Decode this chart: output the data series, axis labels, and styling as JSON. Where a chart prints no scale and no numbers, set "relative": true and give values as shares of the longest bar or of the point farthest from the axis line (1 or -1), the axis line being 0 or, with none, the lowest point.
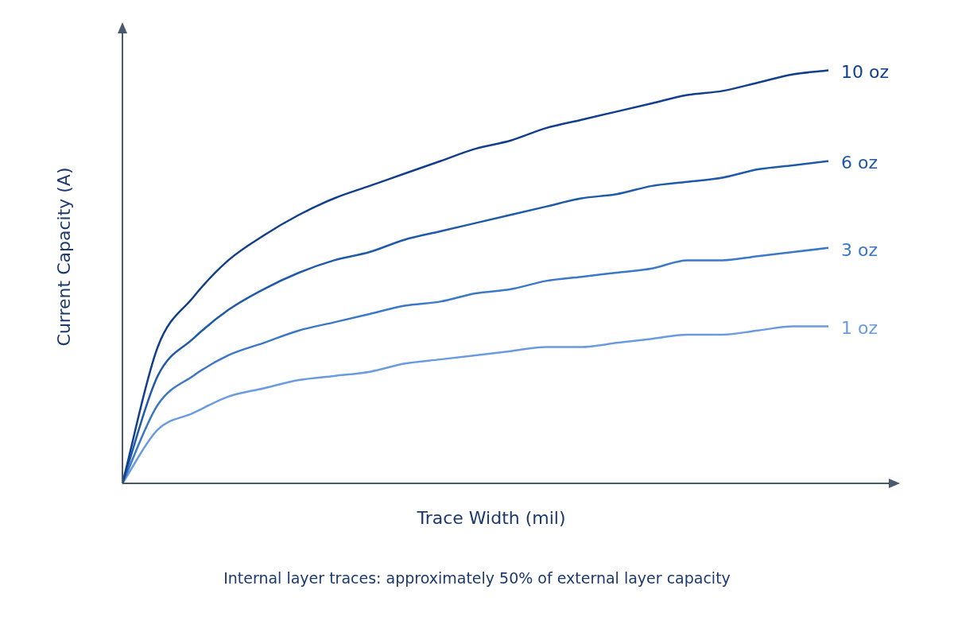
{
  "chart_data": {
    "type": "line",
    "relative": true,
    "xlabel": "Trace Width (mil)",
    "ylabel": "Current Capacity (A)",
    "annotations": [
      "Internal layer traces: approximately 50% of external layer capacity"
    ],
    "legend": false,
    "marker": "none",
    "line_style": "solid",
    "categories": [
      null,
      null,
      null,
      null,
      null,
      null,
      null,
      null,
      null,
      null,
      null,
      null,
      null,
      null,
      null,
      null,
      null,
      null,
      null,
      null,
      null
    ],
    "series": [
      {
        "name": "10 oz",
        "color": "#123f8c",
        "values": [
          0,
          0.33,
          0.45,
          0.54,
          0.6,
          0.65,
          0.69,
          0.72,
          0.75,
          0.78,
          0.81,
          0.83,
          0.86,
          0.88,
          0.9,
          0.92,
          0.94,
          0.95,
          0.97,
          0.99,
          1
        ]
      },
      {
        "name": "6 oz",
        "color": "#1f5aa8",
        "values": [
          0,
          0.26,
          0.35,
          0.42,
          0.47,
          0.51,
          0.54,
          0.56,
          0.59,
          0.61,
          0.63,
          0.65,
          0.67,
          0.69,
          0.7,
          0.72,
          0.73,
          0.74,
          0.76,
          0.77,
          0.78
        ]
      },
      {
        "name": "3 oz",
        "color": "#3b78c8",
        "values": [
          0,
          0.19,
          0.26,
          0.31,
          0.34,
          0.37,
          0.39,
          0.41,
          0.43,
          0.44,
          0.46,
          0.47,
          0.49,
          0.5,
          0.51,
          0.52,
          0.54,
          0.54,
          0.55,
          0.56,
          0.57
        ]
      },
      {
        "name": "1 oz",
        "color": "#6a9be0",
        "values": [
          0,
          0.13,
          0.17,
          0.21,
          0.23,
          0.25,
          0.26,
          0.27,
          0.29,
          0.3,
          0.31,
          0.32,
          0.33,
          0.33,
          0.34,
          0.35,
          0.36,
          0.36,
          0.37,
          0.38,
          0.38
        ]
      }
    ]
  }
}
